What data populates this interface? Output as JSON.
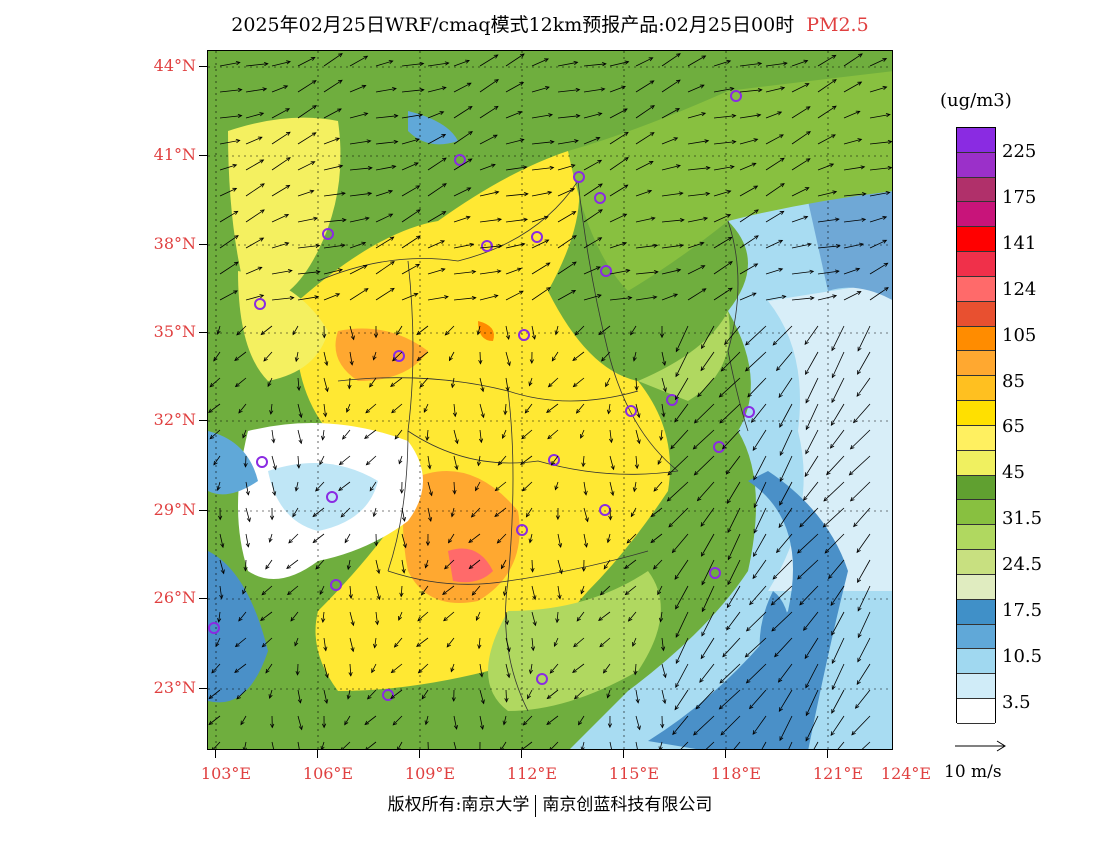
{
  "header": {
    "title": "2025年02月25日WRF/cmaq模式12km预报产品:02月25日00时",
    "pollutant": "PM2.5"
  },
  "axes": {
    "lat_labels": [
      "44°N",
      "41°N",
      "38°N",
      "35°N",
      "32°N",
      "29°N",
      "26°N",
      "23°N"
    ],
    "lon_labels": [
      "103°E",
      "106°E",
      "109°E",
      "112°E",
      "115°E",
      "118°E",
      "121°E",
      "124°E"
    ]
  },
  "legend": {
    "unit": "(ug/m3)",
    "labels": [
      "225",
      "175",
      "141",
      "124",
      "105",
      "85",
      "65",
      "45",
      "31.5",
      "24.5",
      "17.5",
      "10.5",
      "3.5"
    ],
    "colors": [
      "#8a2be2",
      "#9b30c9",
      "#b0306a",
      "#c8147a",
      "#ff0000",
      "#f0304a",
      "#ff6a6a",
      "#e85030",
      "#ff8c00",
      "#ffa830",
      "#ffc020",
      "#ffe000",
      "#fff060",
      "#f0f060",
      "#60a030",
      "#88c040",
      "#b0d860",
      "#c8e080",
      "#e0ecc0",
      "#4090c8",
      "#60a8d8",
      "#a0d8f0",
      "#d0ecf8",
      "#ffffff"
    ]
  },
  "wind": {
    "reference_label": "10 m/s"
  },
  "footer": {
    "copyright_left": "版权所有:南京大学",
    "copyright_right": "南京创蓝科技有限公司"
  }
}
